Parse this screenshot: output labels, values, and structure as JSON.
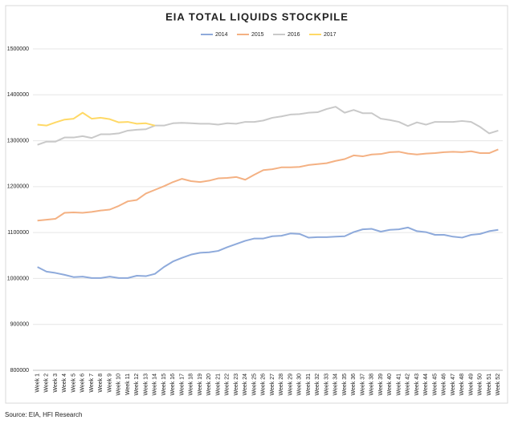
{
  "chart_data": {
    "type": "line",
    "title": "EIA TOTAL LIQUIDS STOCKPILE",
    "source": "Source: EIA, HFI Research",
    "categories": [
      "Week 1",
      "Week 2",
      "Week 3",
      "Week 4",
      "Week 5",
      "Week 6",
      "Week 7",
      "Week 8",
      "Week 9",
      "Week 10",
      "Week 11",
      "Week 12",
      "Week 13",
      "Week 14",
      "Week 15",
      "Week 16",
      "Week 17",
      "Week 18",
      "Week 19",
      "Week 20",
      "Week 21",
      "Week 22",
      "Week 23",
      "Week 24",
      "Week 25",
      "Week 26",
      "Week 27",
      "Week 28",
      "Week 29",
      "Week 30",
      "Week 31",
      "Week 32",
      "Week 33",
      "Week 34",
      "Week 35",
      "Week 36",
      "Week 37",
      "Week 38",
      "Week 39",
      "Week 40",
      "Week 41",
      "Week 42",
      "Week 43",
      "Week 44",
      "Week 45",
      "Week 46",
      "Week 47",
      "Week 48",
      "Week 49",
      "Week 50",
      "Week 51",
      "Week 52"
    ],
    "series": [
      {
        "name": "2014",
        "color": "#8eaadb",
        "values": [
          1025000,
          1015000,
          1012000,
          1008000,
          1003000,
          1004000,
          1001000,
          1001000,
          1004000,
          1001000,
          1001000,
          1006000,
          1005000,
          1010000,
          1025000,
          1037000,
          1045000,
          1052000,
          1056000,
          1057000,
          1060000,
          1068000,
          1075000,
          1082000,
          1087000,
          1087000,
          1092000,
          1093000,
          1098000,
          1097000,
          1089000,
          1090000,
          1090000,
          1091000,
          1092000,
          1101000,
          1107000,
          1108000,
          1102000,
          1106000,
          1107000,
          1111000,
          1103000,
          1101000,
          1095000,
          1095000,
          1091000,
          1089000,
          1095000,
          1097000,
          1103000,
          1106000
        ]
      },
      {
        "name": "2015",
        "color": "#f4b183",
        "values": [
          1126000,
          1128000,
          1130000,
          1143000,
          1144000,
          1143000,
          1145000,
          1148000,
          1150000,
          1158000,
          1168000,
          1171000,
          1185000,
          1193000,
          1201000,
          1210000,
          1217000,
          1212000,
          1210000,
          1213000,
          1218000,
          1219000,
          1221000,
          1215000,
          1226000,
          1236000,
          1238000,
          1242000,
          1242000,
          1243000,
          1247000,
          1249000,
          1251000,
          1256000,
          1260000,
          1268000,
          1266000,
          1270000,
          1271000,
          1275000,
          1276000,
          1272000,
          1270000,
          1272000,
          1273000,
          1275000,
          1276000,
          1275000,
          1277000,
          1273000,
          1273000,
          1281000
        ]
      },
      {
        "name": "2016",
        "color": "#c9c9c9",
        "values": [
          1291000,
          1298000,
          1298000,
          1307000,
          1307000,
          1310000,
          1306000,
          1314000,
          1314000,
          1316000,
          1322000,
          1324000,
          1325000,
          1333000,
          1333000,
          1338000,
          1339000,
          1338000,
          1337000,
          1337000,
          1335000,
          1338000,
          1337000,
          1341000,
          1341000,
          1344000,
          1350000,
          1353000,
          1357000,
          1358000,
          1361000,
          1362000,
          1369000,
          1374000,
          1361000,
          1367000,
          1360000,
          1360000,
          1348000,
          1345000,
          1341000,
          1332000,
          1340000,
          1335000,
          1341000,
          1341000,
          1341000,
          1343000,
          1341000,
          1330000,
          1316000,
          1322000
        ]
      },
      {
        "name": "2017",
        "color": "#ffd966",
        "values": [
          1335000,
          1333000,
          1340000,
          1346000,
          1348000,
          1361000,
          1348000,
          1350000,
          1347000,
          1340000,
          1341000,
          1337000,
          1338000,
          1333000,
          null,
          null,
          null,
          null,
          null,
          null,
          null,
          null,
          null,
          null,
          null,
          null,
          null,
          null,
          null,
          null,
          null,
          null,
          null,
          null,
          null,
          null,
          null,
          null,
          null,
          null,
          null,
          null,
          null,
          null,
          null,
          null,
          null,
          null,
          null,
          null,
          null,
          null
        ]
      }
    ],
    "ylim": [
      800000,
      1500000
    ],
    "yticks": [
      800000,
      900000,
      1000000,
      1100000,
      1200000,
      1300000,
      1400000,
      1500000
    ],
    "grid": true,
    "legend": "top"
  }
}
